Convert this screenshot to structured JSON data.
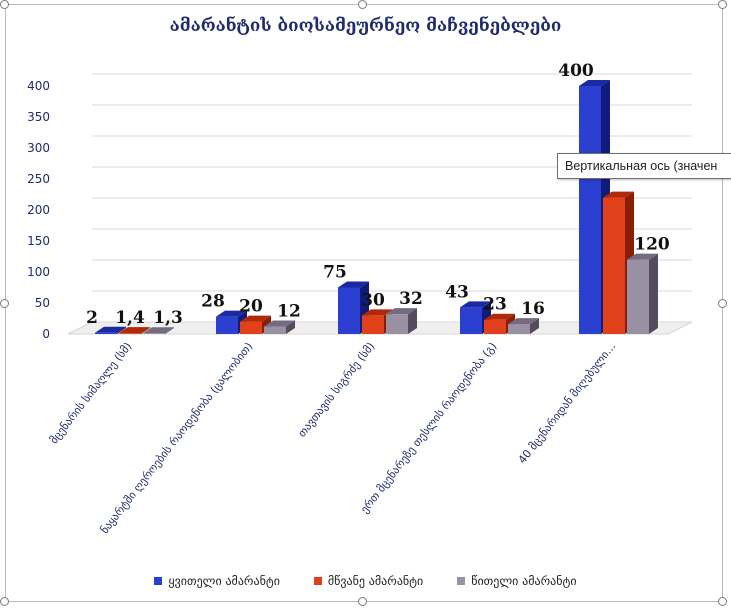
{
  "colors": {
    "series_front": [
      "#2b3fd0",
      "#e0401a",
      "#9a90a4"
    ],
    "series_top": [
      "#1b2aa0",
      "#b02a0a",
      "#756b80"
    ],
    "series_side": [
      "#101c7c",
      "#8a1e04",
      "#544b5e"
    ],
    "grid": "#d9d9d9",
    "title": "#1e2b6e",
    "axis_text": "#1e2b6e"
  },
  "tooltip": {
    "text": "Вертикальная ось (значен"
  },
  "chart_data": {
    "type": "bar",
    "title": "ამარანტის ბიოსამეურნეო მაჩვენებლები",
    "categories": [
      "მცენარის სიმაღლე (სმ)",
      "ნაყარტში ღეროების რაოდენობა (ცალობით)",
      "თავთავის სიგრძე (სმ)",
      "ერთ მცენარეზე თესლის რაოდენობა (გ)",
      "40 მცენარიდან მიღებული…"
    ],
    "series": [
      {
        "name": "ყვითელი ამარანტი",
        "values": [
          2,
          28,
          75,
          43,
          400
        ],
        "labels": [
          "2",
          "28",
          "75",
          "43",
          "400"
        ]
      },
      {
        "name": "მწვანე ამარანტი",
        "values": [
          1.4,
          20,
          30,
          23,
          220
        ],
        "labels": [
          "1,4",
          "20",
          "30",
          "23",
          ""
        ]
      },
      {
        "name": "წითელი ამარანტი",
        "values": [
          1.3,
          12,
          32,
          16,
          120
        ],
        "labels": [
          "1,3",
          "12",
          "32",
          "16",
          "120"
        ]
      }
    ],
    "yticks": [
      0,
      50,
      100,
      150,
      200,
      250,
      300,
      350,
      400
    ],
    "ylim": [
      0,
      400
    ],
    "grid": true,
    "legend": "bottom"
  }
}
